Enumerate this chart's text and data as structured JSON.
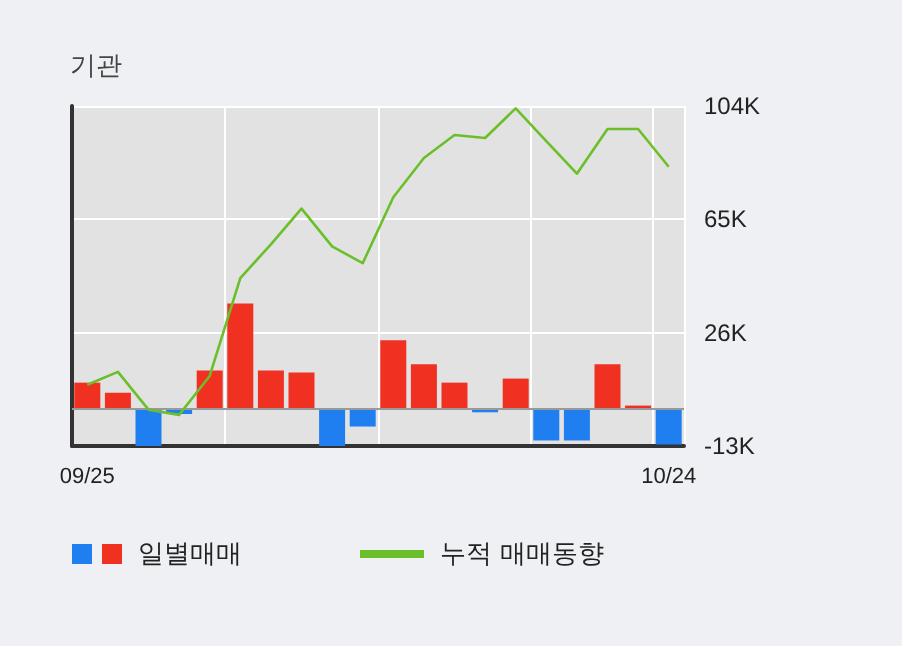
{
  "chart_data": {
    "type": "bar",
    "title": "기관",
    "categories": [
      "09/25",
      null,
      null,
      null,
      null,
      null,
      null,
      null,
      null,
      null,
      null,
      null,
      null,
      null,
      null,
      null,
      null,
      null,
      null,
      "10/24"
    ],
    "series": [
      {
        "name": "일별매매",
        "colors": [
          "#f03020",
          "#f03020",
          "#1f7ef0",
          "#1f7ef0",
          "#f03020",
          "#f03020",
          "#f03020",
          "#f03020",
          "#1f7ef0",
          "#1f7ef0",
          "#f03020",
          "#f03020",
          "#f03020",
          "#1f7ef0",
          "#f03020",
          "#1f7ef0",
          "#1f7ef0",
          "#f03020",
          "#f03020",
          "#1f7ef0"
        ],
        "values": [
          8800,
          5300,
          -13000,
          -2000,
          13000,
          36000,
          13000,
          12300,
          -13000,
          -6300,
          23400,
          15100,
          8800,
          -1400,
          10200,
          -11100,
          -11100,
          15100,
          900,
          -12500
        ]
      },
      {
        "name": "누적 매매동향",
        "type": "line",
        "color": "#6abf2a",
        "values": [
          8100,
          12500,
          -500,
          -2300,
          11100,
          44800,
          56400,
          68700,
          55700,
          49900,
          72600,
          86100,
          94000,
          93000,
          103200,
          91900,
          80700,
          96100,
          96100,
          83100
        ]
      }
    ],
    "ylim": [
      -13000,
      104000
    ],
    "yticks": [
      {
        "value": -13000,
        "label": "-13K"
      },
      {
        "value": 26000,
        "label": "26K"
      },
      {
        "value": 65000,
        "label": "65K"
      },
      {
        "value": 104000,
        "label": "104K"
      }
    ],
    "ref_lines": [
      {
        "axis": "y",
        "value": 0,
        "color": "#999999"
      }
    ],
    "grid": true,
    "legend": "bottom",
    "marker": "none",
    "line_style": "solid"
  }
}
